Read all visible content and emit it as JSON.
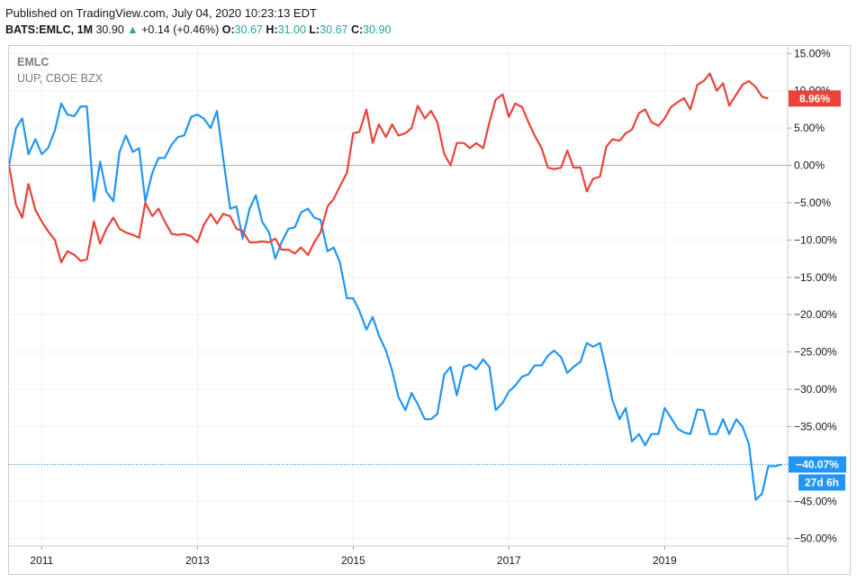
{
  "header": {
    "published": "Published on TradingView.com, July 04, 2020 10:23:13 EDT",
    "symbol": "BATS:EMLC, 1M",
    "last": "30.90",
    "change": "+0.14 (+0.46%)",
    "o_label": "O:",
    "o": "30.67",
    "h_label": "H:",
    "h": "31.00",
    "l_label": "L:",
    "l": "30.67",
    "c_label": "C:",
    "c": "30.90"
  },
  "colors": {
    "emlc": "#2196f3",
    "uup": "#e8443a",
    "grid": "#eef0f3",
    "zero": "#a9adb4",
    "up": "#26a69a"
  },
  "chart_data": {
    "type": "line",
    "legend": [
      "EMLC",
      "UUP, CBOE BZX"
    ],
    "ylim": [
      -51,
      16
    ],
    "xlim": [
      2010.58,
      2020.58
    ],
    "y_ticks": [
      15,
      10,
      5,
      0,
      -5,
      -10,
      -15,
      -20,
      -25,
      -30,
      -35,
      -40,
      -45,
      -50
    ],
    "y_tick_labels": [
      "15.00%",
      "10.00%",
      "5.00%",
      "0.00%",
      "−5.00%",
      "−10.00%",
      "−15.00%",
      "−20.00%",
      "−25.00%",
      "−30.00%",
      "−35.00%",
      "−40.00%",
      "−45.00%",
      "−50.00%"
    ],
    "x_ticks": [
      2011,
      2013,
      2015,
      2017,
      2019
    ],
    "x_tick_labels": [
      "2011",
      "2013",
      "2015",
      "2017",
      "2019"
    ],
    "series": [
      {
        "name": "EMLC",
        "color": "#2196f3",
        "last_label": "−40.07%",
        "countdown": "27d 6h",
        "points": [
          [
            2010.58,
            0
          ],
          [
            2010.67,
            5.0
          ],
          [
            2010.75,
            6.3
          ],
          [
            2010.83,
            1.5
          ],
          [
            2010.92,
            3.5
          ],
          [
            2011.0,
            1.5
          ],
          [
            2011.08,
            2.3
          ],
          [
            2011.17,
            4.7
          ],
          [
            2011.25,
            8.3
          ],
          [
            2011.33,
            6.8
          ],
          [
            2011.42,
            6.6
          ],
          [
            2011.5,
            7.9
          ],
          [
            2011.58,
            7.9
          ],
          [
            2011.67,
            -4.8
          ],
          [
            2011.75,
            0.5
          ],
          [
            2011.83,
            -3.5
          ],
          [
            2011.92,
            -4.8
          ],
          [
            2012.0,
            1.8
          ],
          [
            2012.08,
            4.0
          ],
          [
            2012.17,
            1.8
          ],
          [
            2012.25,
            2.3
          ],
          [
            2012.33,
            -4.8
          ],
          [
            2012.42,
            -1.0
          ],
          [
            2012.5,
            1.0
          ],
          [
            2012.58,
            1.0
          ],
          [
            2012.67,
            2.8
          ],
          [
            2012.75,
            3.8
          ],
          [
            2012.83,
            4.0
          ],
          [
            2012.92,
            6.5
          ],
          [
            2013.0,
            6.8
          ],
          [
            2013.08,
            6.3
          ],
          [
            2013.17,
            5.0
          ],
          [
            2013.25,
            7.3
          ],
          [
            2013.33,
            1.0
          ],
          [
            2013.42,
            -5.8
          ],
          [
            2013.5,
            -5.5
          ],
          [
            2013.58,
            -9.8
          ],
          [
            2013.67,
            -5.8
          ],
          [
            2013.75,
            -4.0
          ],
          [
            2013.83,
            -7.5
          ],
          [
            2013.92,
            -9.0
          ],
          [
            2014.0,
            -12.5
          ],
          [
            2014.08,
            -10.3
          ],
          [
            2014.17,
            -8.5
          ],
          [
            2014.25,
            -8.3
          ],
          [
            2014.33,
            -6.3
          ],
          [
            2014.42,
            -5.8
          ],
          [
            2014.5,
            -7.0
          ],
          [
            2014.58,
            -7.3
          ],
          [
            2014.67,
            -11.5
          ],
          [
            2014.75,
            -11.0
          ],
          [
            2014.83,
            -13.0
          ],
          [
            2014.92,
            -17.8
          ],
          [
            2015.0,
            -17.8
          ],
          [
            2015.08,
            -19.5
          ],
          [
            2015.17,
            -22.0
          ],
          [
            2015.25,
            -20.3
          ],
          [
            2015.33,
            -22.8
          ],
          [
            2015.42,
            -24.8
          ],
          [
            2015.5,
            -27.5
          ],
          [
            2015.58,
            -31.0
          ],
          [
            2015.67,
            -32.8
          ],
          [
            2015.75,
            -30.5
          ],
          [
            2015.83,
            -32.0
          ],
          [
            2015.92,
            -34.0
          ],
          [
            2016.0,
            -34.0
          ],
          [
            2016.08,
            -33.3
          ],
          [
            2016.17,
            -28.0
          ],
          [
            2016.25,
            -27.0
          ],
          [
            2016.33,
            -30.8
          ],
          [
            2016.42,
            -27.0
          ],
          [
            2016.5,
            -26.7
          ],
          [
            2016.58,
            -27.3
          ],
          [
            2016.67,
            -26.0
          ],
          [
            2016.75,
            -27.0
          ],
          [
            2016.83,
            -32.8
          ],
          [
            2016.92,
            -31.8
          ],
          [
            2017.0,
            -30.3
          ],
          [
            2017.08,
            -29.5
          ],
          [
            2017.17,
            -28.3
          ],
          [
            2017.25,
            -28.0
          ],
          [
            2017.33,
            -26.8
          ],
          [
            2017.42,
            -26.8
          ],
          [
            2017.5,
            -25.5
          ],
          [
            2017.58,
            -24.8
          ],
          [
            2017.67,
            -25.7
          ],
          [
            2017.75,
            -27.8
          ],
          [
            2017.83,
            -27.0
          ],
          [
            2017.92,
            -26.3
          ],
          [
            2018.0,
            -23.8
          ],
          [
            2018.08,
            -24.3
          ],
          [
            2018.17,
            -23.8
          ],
          [
            2018.25,
            -27.5
          ],
          [
            2018.33,
            -31.5
          ],
          [
            2018.42,
            -34.0
          ],
          [
            2018.5,
            -32.5
          ],
          [
            2018.58,
            -37.0
          ],
          [
            2018.67,
            -36.0
          ],
          [
            2018.75,
            -37.5
          ],
          [
            2018.83,
            -36.0
          ],
          [
            2018.92,
            -36.0
          ],
          [
            2019.0,
            -32.5
          ],
          [
            2019.08,
            -33.8
          ],
          [
            2019.17,
            -35.3
          ],
          [
            2019.25,
            -35.8
          ],
          [
            2019.33,
            -36.0
          ],
          [
            2019.42,
            -32.7
          ],
          [
            2019.5,
            -32.8
          ],
          [
            2019.58,
            -36.0
          ],
          [
            2019.67,
            -36.0
          ],
          [
            2019.75,
            -34.0
          ],
          [
            2019.83,
            -36.0
          ],
          [
            2019.92,
            -34.0
          ],
          [
            2020.0,
            -35.0
          ],
          [
            2020.08,
            -37.3
          ],
          [
            2020.17,
            -44.8
          ],
          [
            2020.25,
            -44.0
          ],
          [
            2020.33,
            -40.3
          ],
          [
            2020.42,
            -40.3
          ],
          [
            2020.5,
            -40.07
          ]
        ]
      },
      {
        "name": "UUP, CBOE BZX",
        "color": "#e8443a",
        "last_label": "8.96%",
        "points": [
          [
            2010.58,
            0
          ],
          [
            2010.67,
            -5.3
          ],
          [
            2010.75,
            -7.0
          ],
          [
            2010.83,
            -2.5
          ],
          [
            2010.92,
            -6.0
          ],
          [
            2011.0,
            -7.5
          ],
          [
            2011.08,
            -8.8
          ],
          [
            2011.17,
            -10.0
          ],
          [
            2011.25,
            -13.0
          ],
          [
            2011.33,
            -11.5
          ],
          [
            2011.42,
            -12.0
          ],
          [
            2011.5,
            -12.8
          ],
          [
            2011.58,
            -12.6
          ],
          [
            2011.67,
            -7.5
          ],
          [
            2011.75,
            -10.5
          ],
          [
            2011.83,
            -8.5
          ],
          [
            2011.92,
            -7.0
          ],
          [
            2012.0,
            -8.5
          ],
          [
            2012.08,
            -9.0
          ],
          [
            2012.17,
            -9.3
          ],
          [
            2012.25,
            -9.7
          ],
          [
            2012.33,
            -5.0
          ],
          [
            2012.42,
            -6.8
          ],
          [
            2012.5,
            -5.8
          ],
          [
            2012.58,
            -7.5
          ],
          [
            2012.67,
            -9.2
          ],
          [
            2012.75,
            -9.3
          ],
          [
            2012.83,
            -9.2
          ],
          [
            2012.92,
            -9.5
          ],
          [
            2013.0,
            -10.3
          ],
          [
            2013.08,
            -8.0
          ],
          [
            2013.17,
            -6.5
          ],
          [
            2013.25,
            -7.8
          ],
          [
            2013.33,
            -6.5
          ],
          [
            2013.42,
            -6.8
          ],
          [
            2013.5,
            -8.5
          ],
          [
            2013.58,
            -8.8
          ],
          [
            2013.67,
            -10.3
          ],
          [
            2013.75,
            -10.3
          ],
          [
            2013.83,
            -10.2
          ],
          [
            2013.92,
            -10.3
          ],
          [
            2014.0,
            -9.8
          ],
          [
            2014.08,
            -11.3
          ],
          [
            2014.17,
            -11.3
          ],
          [
            2014.25,
            -11.8
          ],
          [
            2014.33,
            -11.0
          ],
          [
            2014.42,
            -12.0
          ],
          [
            2014.5,
            -10.3
          ],
          [
            2014.58,
            -9.0
          ],
          [
            2014.67,
            -5.5
          ],
          [
            2014.75,
            -4.5
          ],
          [
            2014.83,
            -2.8
          ],
          [
            2014.92,
            -1.0
          ],
          [
            2015.0,
            4.3
          ],
          [
            2015.08,
            4.5
          ],
          [
            2015.17,
            7.5
          ],
          [
            2015.25,
            3.0
          ],
          [
            2015.33,
            5.5
          ],
          [
            2015.42,
            3.8
          ],
          [
            2015.5,
            5.5
          ],
          [
            2015.58,
            4.0
          ],
          [
            2015.67,
            4.3
          ],
          [
            2015.75,
            5.0
          ],
          [
            2015.83,
            8.0
          ],
          [
            2015.92,
            6.3
          ],
          [
            2016.0,
            7.3
          ],
          [
            2016.08,
            5.8
          ],
          [
            2016.17,
            1.5
          ],
          [
            2016.25,
            0
          ],
          [
            2016.33,
            3.0
          ],
          [
            2016.42,
            3.0
          ],
          [
            2016.5,
            2.3
          ],
          [
            2016.58,
            3.0
          ],
          [
            2016.67,
            2.3
          ],
          [
            2016.75,
            5.8
          ],
          [
            2016.83,
            8.8
          ],
          [
            2016.92,
            9.5
          ],
          [
            2017.0,
            6.5
          ],
          [
            2017.08,
            8.3
          ],
          [
            2017.17,
            7.8
          ],
          [
            2017.25,
            5.8
          ],
          [
            2017.33,
            4.0
          ],
          [
            2017.42,
            2.3
          ],
          [
            2017.5,
            -0.3
          ],
          [
            2017.58,
            -0.5
          ],
          [
            2017.67,
            -0.3
          ],
          [
            2017.75,
            2.0
          ],
          [
            2017.83,
            -0.3
          ],
          [
            2017.92,
            -0.3
          ],
          [
            2018.0,
            -3.5
          ],
          [
            2018.08,
            -1.8
          ],
          [
            2018.17,
            -1.5
          ],
          [
            2018.25,
            2.5
          ],
          [
            2018.33,
            3.5
          ],
          [
            2018.42,
            3.3
          ],
          [
            2018.5,
            4.3
          ],
          [
            2018.58,
            4.8
          ],
          [
            2018.67,
            7.0
          ],
          [
            2018.75,
            7.5
          ],
          [
            2018.83,
            5.8
          ],
          [
            2018.92,
            5.3
          ],
          [
            2019.0,
            6.3
          ],
          [
            2019.08,
            7.8
          ],
          [
            2019.17,
            8.5
          ],
          [
            2019.25,
            9.0
          ],
          [
            2019.33,
            7.5
          ],
          [
            2019.42,
            10.8
          ],
          [
            2019.5,
            11.3
          ],
          [
            2019.58,
            12.3
          ],
          [
            2019.67,
            10.0
          ],
          [
            2019.75,
            11.0
          ],
          [
            2019.83,
            8.0
          ],
          [
            2019.92,
            9.5
          ],
          [
            2020.0,
            10.8
          ],
          [
            2020.08,
            11.3
          ],
          [
            2020.17,
            10.5
          ],
          [
            2020.25,
            9.2
          ],
          [
            2020.33,
            8.96
          ]
        ]
      }
    ]
  }
}
